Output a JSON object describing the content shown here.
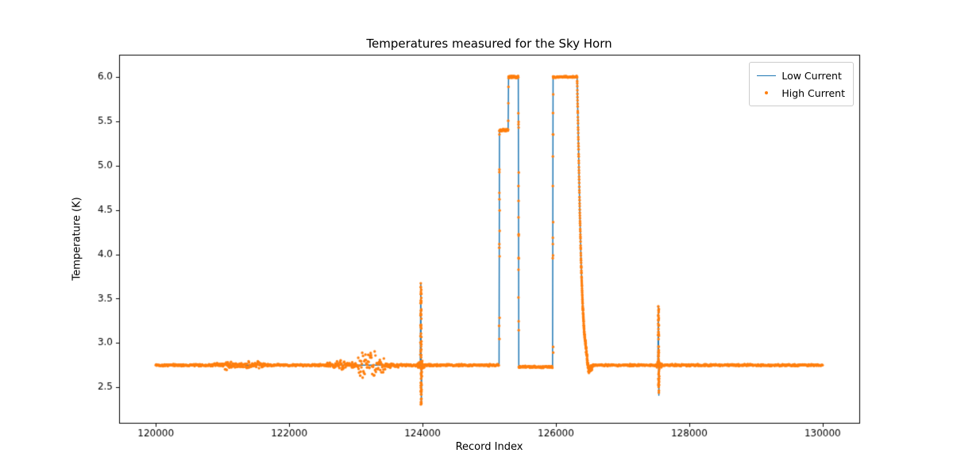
{
  "chart_data": {
    "type": "line",
    "title": "Temperatures measured for the Sky Horn",
    "xlabel": "Record Index",
    "ylabel": "Temperature (K)",
    "xlim": [
      119450,
      130550
    ],
    "ylim": [
      2.1,
      6.25
    ],
    "xticks": [
      120000,
      122000,
      124000,
      126000,
      128000,
      130000
    ],
    "yticks": [
      2.5,
      3.0,
      3.5,
      4.0,
      4.5,
      5.0,
      5.5,
      6.0
    ],
    "grid": false,
    "legend_position": "upper right",
    "series": [
      {
        "name": "Low Current",
        "color": "#1f77b4",
        "style": "line"
      },
      {
        "name": "High Current",
        "color": "#ff7f0e",
        "style": "scatter"
      }
    ],
    "axis_color": "#000000",
    "signal": {
      "baseline": 2.75,
      "keypoints": [
        [
          120000,
          2.75
        ],
        [
          123966,
          2.75
        ],
        [
          123974,
          3.66
        ],
        [
          123982,
          2.31
        ],
        [
          123990,
          2.75
        ],
        [
          125148,
          2.75
        ],
        [
          125154,
          5.4
        ],
        [
          125284,
          5.4
        ],
        [
          125290,
          6.0
        ],
        [
          125436,
          6.0
        ],
        [
          125444,
          2.73
        ],
        [
          125950,
          2.73
        ],
        [
          125958,
          6.0
        ],
        [
          126318,
          6.0
        ],
        [
          126338,
          5.25
        ],
        [
          126358,
          4.5
        ],
        [
          126378,
          3.9
        ],
        [
          126400,
          3.45
        ],
        [
          126425,
          3.12
        ],
        [
          126450,
          2.95
        ],
        [
          126475,
          2.78
        ],
        [
          126495,
          2.68
        ],
        [
          126520,
          2.71
        ],
        [
          126560,
          2.75
        ],
        [
          127530,
          2.75
        ],
        [
          127536,
          3.42
        ],
        [
          127544,
          2.41
        ],
        [
          127551,
          2.75
        ],
        [
          130000,
          2.75
        ]
      ],
      "noise_regions": [
        {
          "from": 120000,
          "to": 130000,
          "amp": 0.013
        },
        {
          "from": 120850,
          "to": 121700,
          "amp": 0.03
        },
        {
          "from": 121020,
          "to": 121130,
          "amp": 0.06
        },
        {
          "from": 121280,
          "to": 121430,
          "amp": 0.065
        },
        {
          "from": 121480,
          "to": 121590,
          "amp": 0.045
        },
        {
          "from": 122550,
          "to": 123650,
          "amp": 0.035
        },
        {
          "from": 122690,
          "to": 122830,
          "amp": 0.07
        },
        {
          "from": 123020,
          "to": 123150,
          "amp": 0.17
        },
        {
          "from": 123180,
          "to": 123310,
          "amp": 0.17
        },
        {
          "from": 123330,
          "to": 123440,
          "amp": 0.09
        },
        {
          "from": 123930,
          "to": 124040,
          "amp": 0.05
        },
        {
          "from": 126440,
          "to": 126540,
          "amp": 0.04
        },
        {
          "from": 127500,
          "to": 127590,
          "amp": 0.04
        }
      ],
      "dense_regions": [
        {
          "from": 123966,
          "to": 123996,
          "step": 1
        },
        {
          "from": 125148,
          "to": 125460,
          "step": 2
        },
        {
          "from": 125950,
          "to": 125968,
          "step": 2
        },
        {
          "from": 126315,
          "to": 126560,
          "step": 1
        },
        {
          "from": 127528,
          "to": 127556,
          "step": 1
        }
      ],
      "vertical_scatters": [
        {
          "x": 123978,
          "ymin": 2.29,
          "ymax": 3.66,
          "count": 55,
          "xjitter": 5
        },
        {
          "x": 125154,
          "ymin": 2.78,
          "ymax": 5.38,
          "count": 10,
          "xjitter": 3
        },
        {
          "x": 125441,
          "ymin": 2.8,
          "ymax": 5.95,
          "count": 12,
          "xjitter": 3
        },
        {
          "x": 125957,
          "ymin": 2.8,
          "ymax": 5.95,
          "count": 10,
          "xjitter": 3
        },
        {
          "x": 127541,
          "ymin": 2.41,
          "ymax": 3.4,
          "count": 45,
          "xjitter": 5
        }
      ],
      "sample_step": 6,
      "dot_radius": 1.7
    }
  }
}
